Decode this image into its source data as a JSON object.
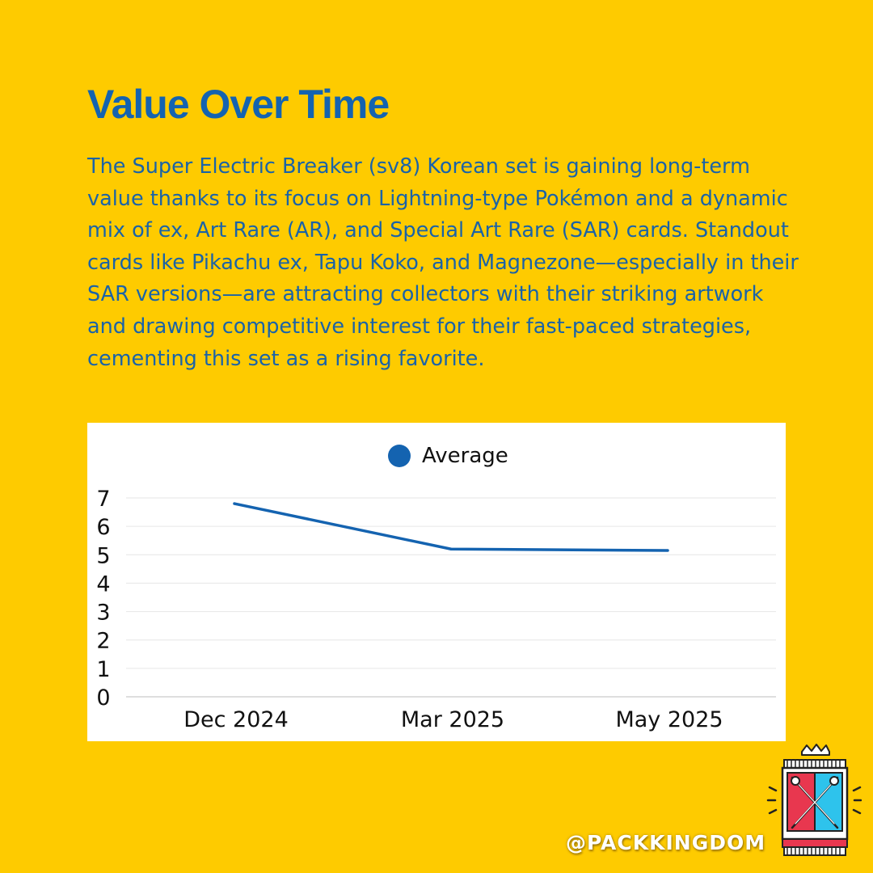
{
  "header": {
    "title": "Value Over Time",
    "description": "The Super Electric Breaker (sv8) Korean set is gaining long-term value thanks to its focus on Lightning-type Pokémon and a dynamic mix of ex, Art Rare (AR), and Special Art Rare (SAR) cards. Standout cards like Pikachu ex, Tapu Koko, and Magnezone—especially in their SAR versions—are attracting collectors with their striking artwork and drawing competitive interest for their fast-paced strategies, cementing this set as a rising favorite."
  },
  "chart_data": {
    "type": "line",
    "categories": [
      "Dec 2024",
      "Mar 2025",
      "May 2025"
    ],
    "series": [
      {
        "name": "Average",
        "values": [
          6.8,
          5.2,
          5.15
        ],
        "color": "#1463B0"
      }
    ],
    "ylim": [
      0,
      7
    ],
    "yticks": [
      "0",
      "1",
      "2",
      "3",
      "4",
      "5",
      "6",
      "7"
    ],
    "grid": true,
    "legend": "top-center"
  },
  "footer": {
    "handle": "@PACKKINGDOM",
    "logo_icon": "pack-kingdom-crossed-swords-logo"
  },
  "colors": {
    "background": "#FECB00",
    "accent": "#1463B0"
  }
}
